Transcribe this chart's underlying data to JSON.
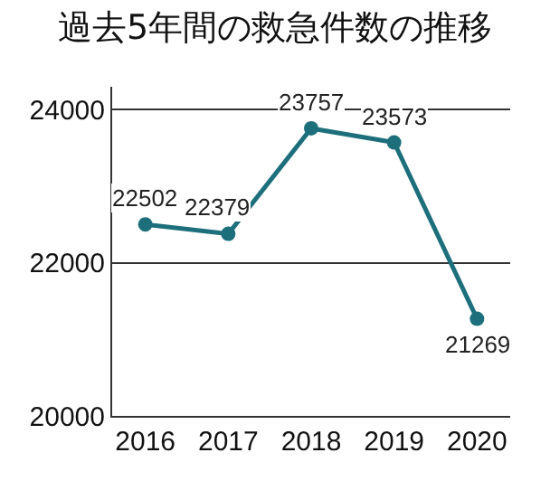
{
  "chart_data": {
    "type": "line",
    "title": "過去5年間の救急件数の推移",
    "categories": [
      "2016",
      "2017",
      "2018",
      "2019",
      "2020"
    ],
    "values": [
      22502,
      22379,
      23757,
      23573,
      21269
    ],
    "color": "#1d6f7c",
    "ylim": [
      20000,
      24300
    ],
    "yticks": [
      20000,
      22000,
      24000
    ],
    "grid": "y",
    "marker": "circle",
    "data_labels": true
  }
}
